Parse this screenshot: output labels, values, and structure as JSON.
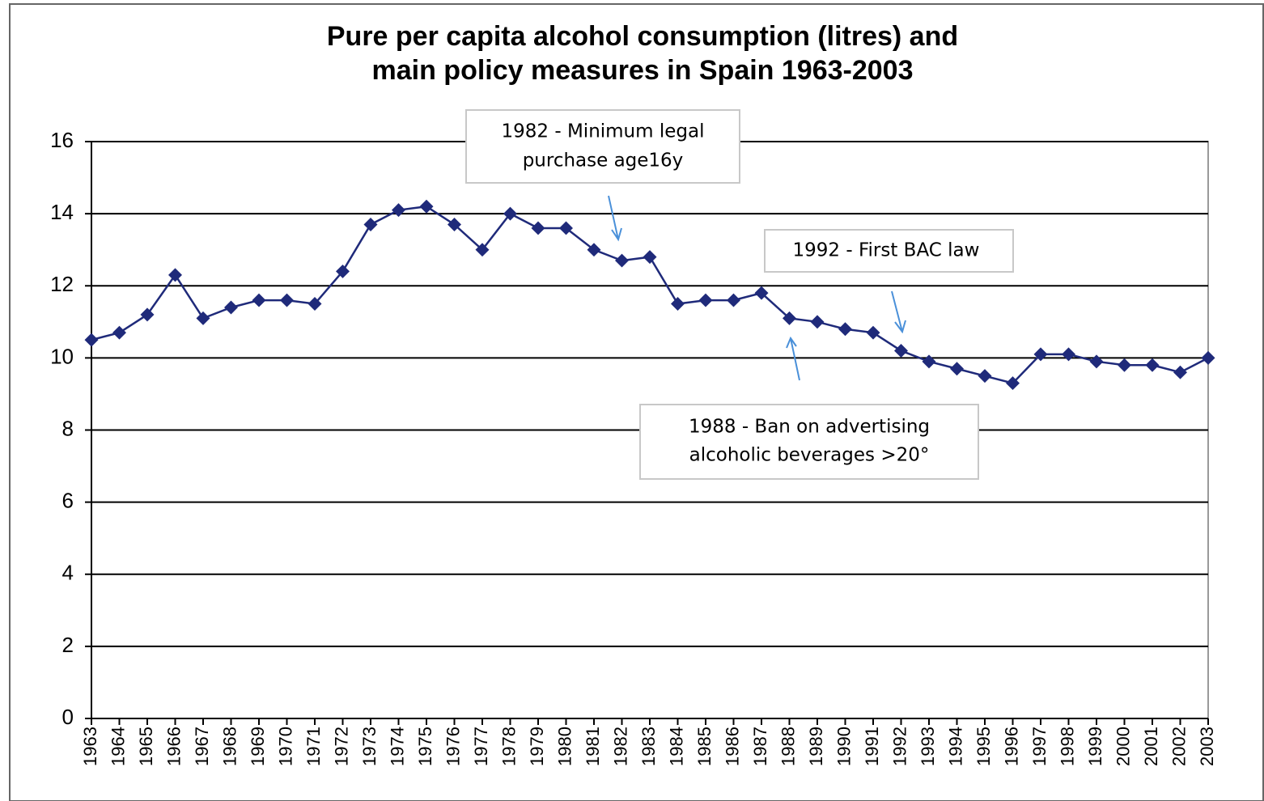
{
  "chart_data": {
    "type": "line",
    "title": [
      "Pure per capita alcohol consumption (litres)  and",
      "main policy measures in Spain 1963-2003"
    ],
    "categories": [
      "1963",
      "1964",
      "1965",
      "1966",
      "1967",
      "1968",
      "1969",
      "1970",
      "1971",
      "1972",
      "1973",
      "1974",
      "1975",
      "1976",
      "1977",
      "1978",
      "1979",
      "1980",
      "1981",
      "1982",
      "1983",
      "1984",
      "1985",
      "1986",
      "1987",
      "1988",
      "1989",
      "1990",
      "1991",
      "1992",
      "1993",
      "1994",
      "1995",
      "1996",
      "1997",
      "1998",
      "1999",
      "2000",
      "2001",
      "2002",
      "2003"
    ],
    "values": [
      10.5,
      10.7,
      11.2,
      12.3,
      11.1,
      11.4,
      11.6,
      11.6,
      11.5,
      12.4,
      13.7,
      14.1,
      14.2,
      13.7,
      13.0,
      14.0,
      13.6,
      13.6,
      13.0,
      12.7,
      12.8,
      11.5,
      11.6,
      11.6,
      11.8,
      11.1,
      11.0,
      10.8,
      10.7,
      10.2,
      9.9,
      9.7,
      9.5,
      9.3,
      10.1,
      10.1,
      9.9,
      9.8,
      9.8,
      9.6,
      10.0
    ],
    "color": "#1f2a7a",
    "ylim": [
      0,
      16
    ],
    "yticks": [
      0,
      2,
      4,
      6,
      8,
      10,
      12,
      14,
      16
    ],
    "grid": true,
    "annotations": [
      {
        "lines": [
          "1982 - Minimum legal",
          "purchase age16y"
        ]
      },
      {
        "lines": [
          "1992 - First  BAC law"
        ]
      },
      {
        "lines": [
          "1988 - Ban on advertising",
          "alcoholic beverages >20°"
        ]
      }
    ]
  }
}
